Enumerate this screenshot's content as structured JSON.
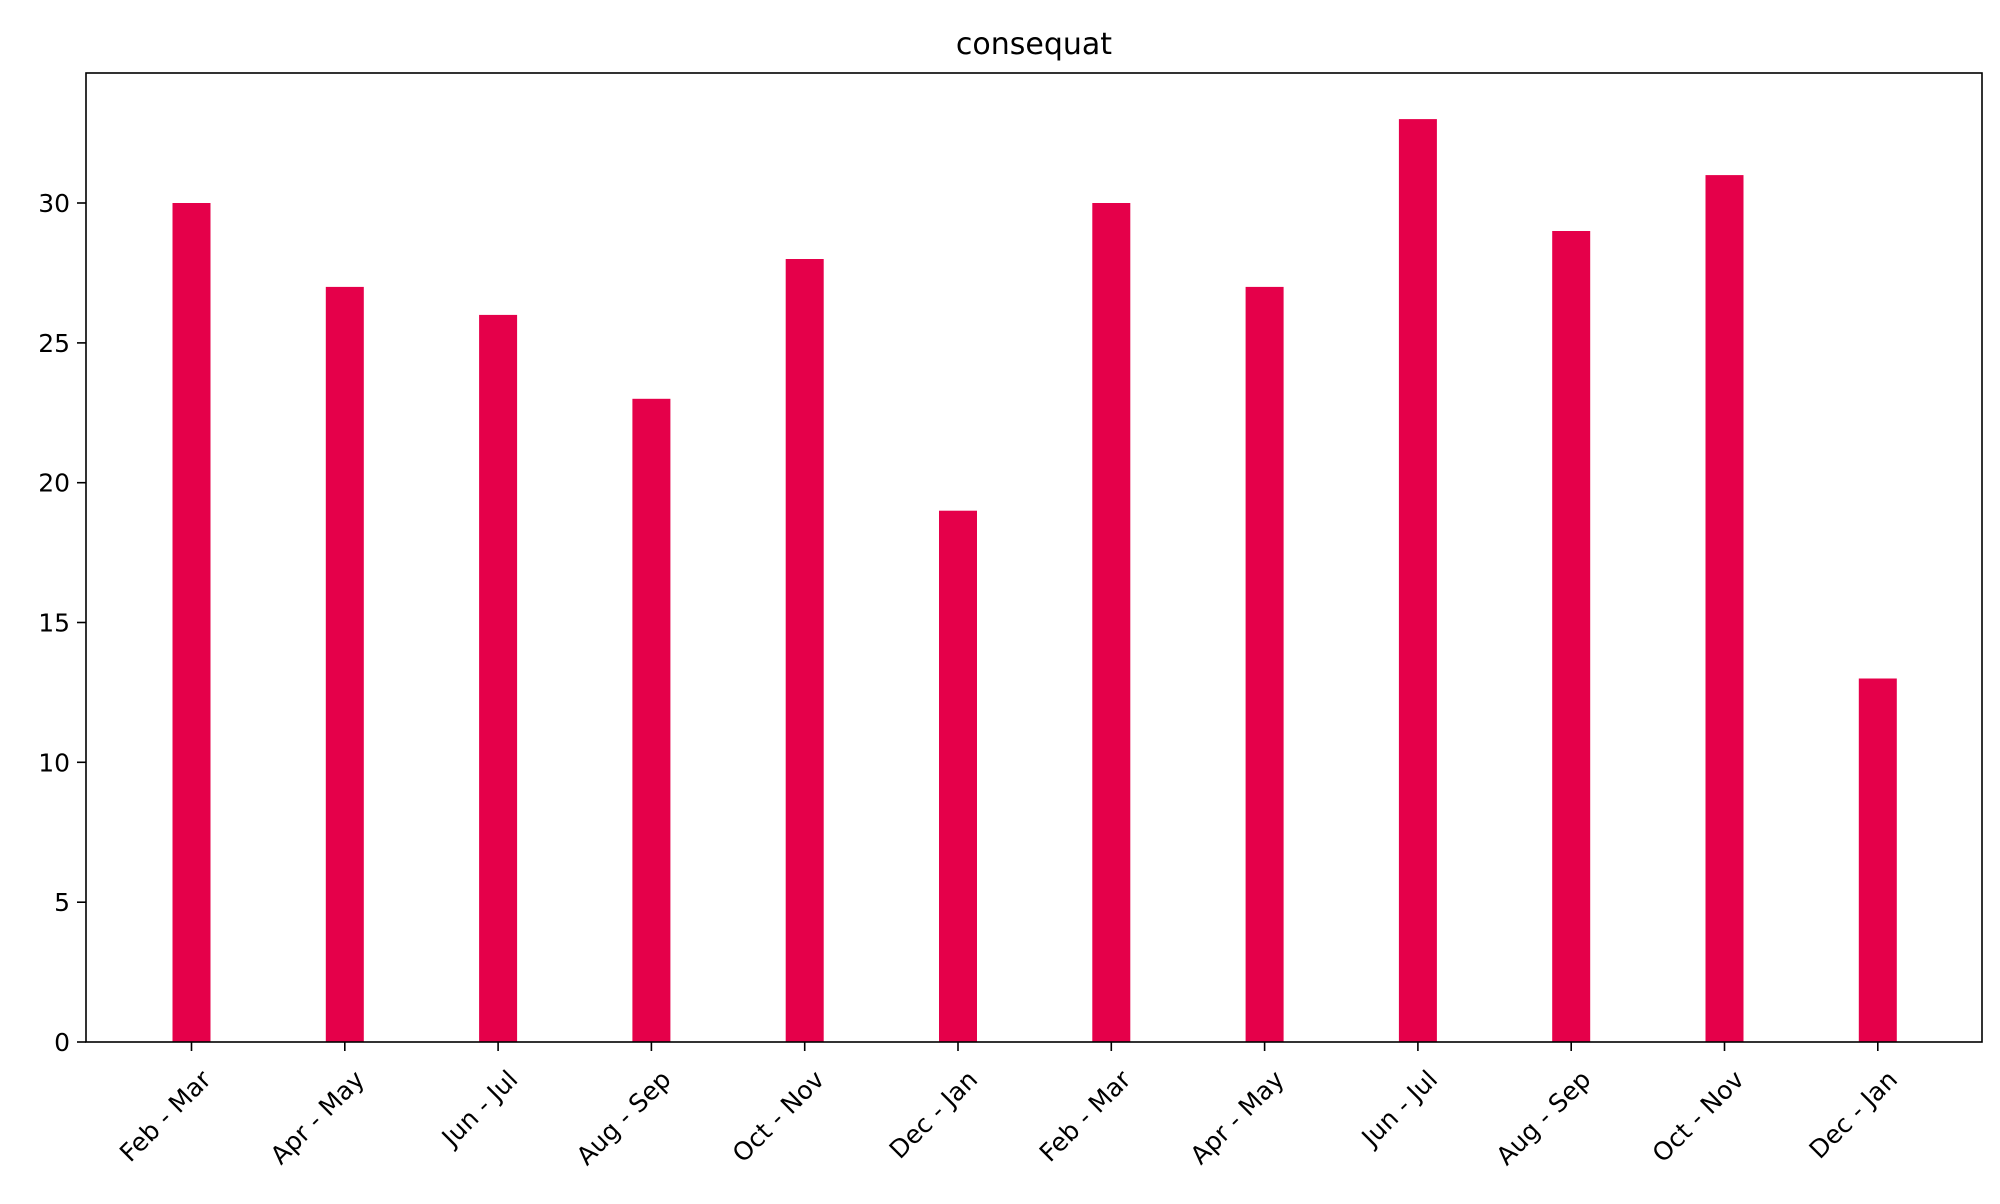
{
  "chart_data": {
    "type": "bar",
    "title": "consequat",
    "xlabel": "",
    "ylabel": "",
    "categories": [
      "Feb - Mar",
      "Apr - May",
      "Jun - Jul",
      "Aug - Sep",
      "Oct - Nov",
      "Dec - Jan",
      "Feb - Mar",
      "Apr - May",
      "Jun - Jul",
      "Aug - Sep",
      "Oct - Nov",
      "Dec - Jan"
    ],
    "values": [
      30,
      27,
      26,
      23,
      28,
      19,
      30,
      27,
      33,
      29,
      31,
      13
    ],
    "ylim": [
      0,
      34.65
    ],
    "yticks": [
      0,
      5,
      10,
      15,
      20,
      25,
      30
    ],
    "bar_color": "#e5004a",
    "grid": false,
    "legend": "none"
  }
}
